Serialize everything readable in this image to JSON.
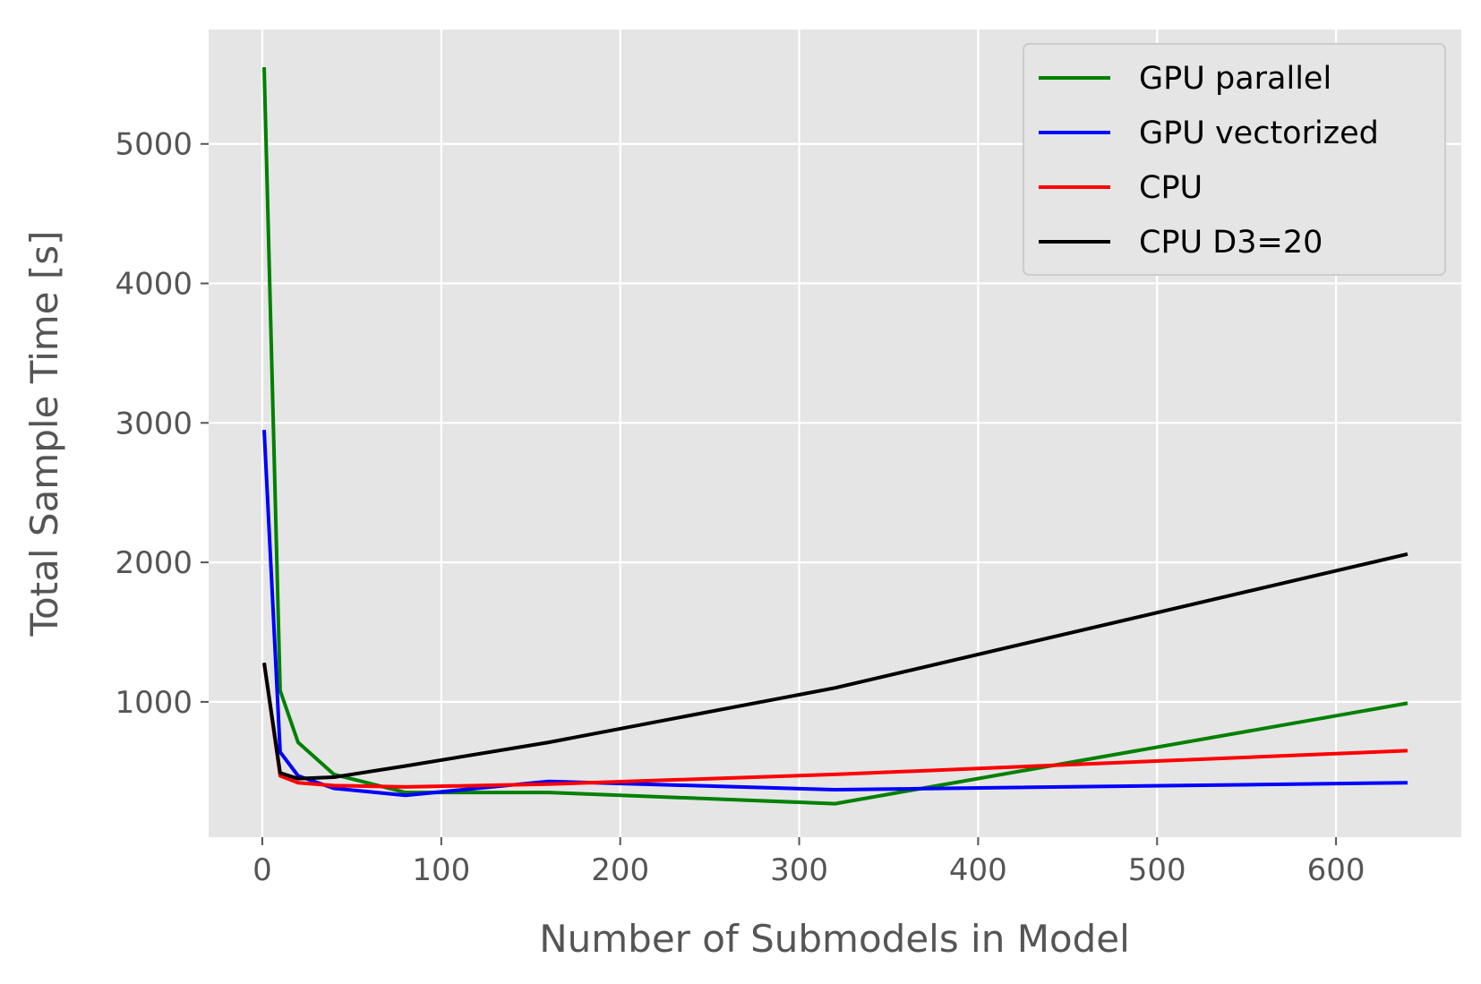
{
  "chart_data": {
    "type": "line",
    "title": "",
    "xlabel": "Number of Submodels in Model",
    "ylabel": "Total Sample Time [s]",
    "xlim": [
      -30,
      670
    ],
    "ylim": [
      30,
      5820
    ],
    "xticks": [
      0,
      100,
      200,
      300,
      400,
      500,
      600
    ],
    "yticks": [
      1000,
      2000,
      3000,
      4000,
      5000
    ],
    "xtick_labels": [
      "0",
      "100",
      "200",
      "300",
      "400",
      "500",
      "600"
    ],
    "ytick_labels": [
      "1000",
      "2000",
      "3000",
      "4000",
      "5000"
    ],
    "grid": true,
    "legend_position": "top-right",
    "series": [
      {
        "name": "GPU parallel",
        "color": "#008000",
        "x": [
          1,
          10,
          20,
          40,
          80,
          160,
          320,
          640
        ],
        "y": [
          5550,
          1080,
          710,
          480,
          350,
          350,
          270,
          990
        ]
      },
      {
        "name": "GPU vectorized",
        "color": "#0000ff",
        "x": [
          1,
          10,
          20,
          40,
          80,
          160,
          320,
          640
        ],
        "y": [
          2950,
          640,
          470,
          380,
          330,
          430,
          370,
          420
        ]
      },
      {
        "name": "CPU",
        "color": "#ff0000",
        "x": [
          1,
          10,
          20,
          40,
          80,
          160,
          320,
          640
        ],
        "y": [
          1280,
          470,
          420,
          400,
          390,
          410,
          480,
          650
        ]
      },
      {
        "name": "CPU D3=20",
        "color": "#000000",
        "x": [
          1,
          10,
          20,
          40,
          80,
          160,
          320,
          640
        ],
        "y": [
          1280,
          490,
          450,
          460,
          540,
          710,
          1100,
          2060
        ]
      }
    ]
  }
}
